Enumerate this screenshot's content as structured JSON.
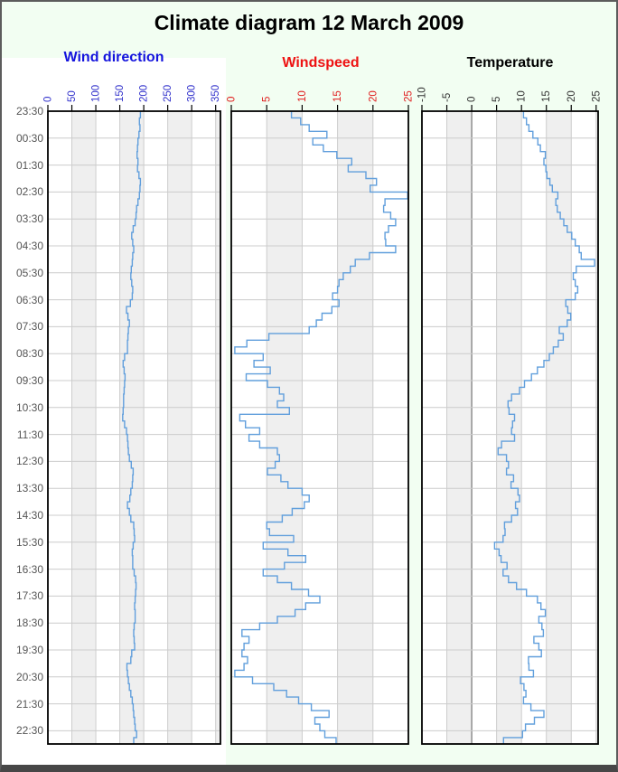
{
  "page": {
    "title": "Climate diagram 12 March 2009"
  },
  "colors": {
    "page_background": "#f2fef2",
    "plot_background": "#ffffff",
    "band": "#efefef",
    "grid": "#cccccc",
    "zero_line": "#878787",
    "box_border": "#000000",
    "frame_border": "#5c5c5c",
    "time_label": "#555555",
    "series_line": "#619fdc"
  },
  "time_axis": {
    "labels": [
      "23:30",
      "00:30",
      "01:30",
      "02:30",
      "03:30",
      "04:30",
      "05:30",
      "06:30",
      "07:30",
      "08:30",
      "09:30",
      "10:30",
      "11:30",
      "12:30",
      "13:30",
      "14:30",
      "15:30",
      "16:30",
      "17:30",
      "18:30",
      "19:30",
      "20:30",
      "21:30",
      "22:30"
    ]
  },
  "chart_data": [
    {
      "type": "line",
      "title": "Wind direction",
      "title_color": "#1414dd",
      "tick_color": "#3434cc",
      "line_color": "#619fdc",
      "ticks": [
        0,
        50,
        100,
        150,
        200,
        250,
        300,
        350
      ],
      "xlim": [
        0,
        360
      ],
      "band_step": 50,
      "zero_line": false,
      "time_start": "23:30",
      "sample_minutes": 15,
      "values": [
        193,
        191,
        192,
        190,
        188,
        187,
        186,
        188,
        187,
        190,
        193,
        192,
        191,
        188,
        185,
        184,
        182,
        178,
        175,
        177,
        179,
        177,
        176,
        174,
        173,
        175,
        177,
        176,
        172,
        164,
        167,
        170,
        168,
        167,
        166,
        166,
        160,
        157,
        159,
        161,
        160,
        159,
        158,
        158,
        157,
        156,
        160,
        164,
        166,
        167,
        168,
        170,
        174,
        178,
        177,
        176,
        173,
        171,
        166,
        170,
        173,
        179,
        180,
        181,
        178,
        176,
        177,
        177,
        180,
        183,
        184,
        183,
        182,
        181,
        182,
        182,
        180,
        179,
        180,
        181,
        175,
        173,
        165,
        166,
        168,
        170,
        173,
        176,
        178,
        179,
        181,
        182,
        185,
        179
      ]
    },
    {
      "type": "line",
      "title": "Windspeed",
      "title_color": "#ee1212",
      "tick_color": "#e02020",
      "line_color": "#619fdc",
      "ticks": [
        0,
        5,
        10,
        15,
        20,
        25
      ],
      "xlim": [
        0,
        25
      ],
      "band_step": 5,
      "zero_line": false,
      "time_start": "23:30",
      "sample_minutes": 15,
      "values": [
        8.5,
        9.8,
        11,
        13.5,
        11.5,
        13,
        14.9,
        17,
        16.5,
        19,
        20.5,
        19.6,
        24.9,
        21.7,
        21.5,
        22.5,
        23.2,
        22.2,
        21.7,
        21.8,
        23.2,
        19.5,
        17.5,
        16.8,
        15.8,
        15.2,
        15,
        14.3,
        15.2,
        14.2,
        12.8,
        12,
        11,
        5.3,
        2.2,
        0.5,
        4.5,
        3.2,
        5.5,
        2.1,
        5.1,
        6.8,
        7.4,
        6.5,
        8.2,
        1.2,
        2,
        4,
        2.5,
        4,
        6.5,
        6.8,
        6.2,
        5.1,
        7,
        8,
        10,
        11,
        10.3,
        8.6,
        7.2,
        5,
        5.4,
        8.8,
        4.5,
        8,
        10.5,
        7.5,
        4.5,
        6.5,
        8.5,
        10.9,
        12.5,
        10.5,
        9,
        6.5,
        4,
        1.5,
        2.5,
        1.8,
        1.5,
        2.3,
        1.8,
        0.5,
        3,
        6,
        7.8,
        9.5,
        11.3,
        13.8,
        11.8,
        12.5,
        13.2,
        14.8
      ]
    },
    {
      "type": "line",
      "title": "Temperature",
      "title_color": "#000000",
      "tick_color": "#333333",
      "line_color": "#619fdc",
      "ticks": [
        -10,
        -5,
        0,
        5,
        10,
        15,
        20,
        25
      ],
      "xlim": [
        -10,
        25.4
      ],
      "band_step": 5,
      "zero_line": true,
      "time_start": "23:30",
      "sample_minutes": 15,
      "values": [
        10.4,
        11,
        11.5,
        12.3,
        13.3,
        13.8,
        14.8,
        14.5,
        14.9,
        15.1,
        15.7,
        16.2,
        17.3,
        16.9,
        17.2,
        17.8,
        18.5,
        19.2,
        20.1,
        20.8,
        21.6,
        22,
        24.7,
        21,
        20.4,
        20.8,
        21.3,
        20.8,
        18.9,
        19.3,
        19.9,
        19.2,
        17.6,
        18.4,
        17.4,
        16.4,
        15.6,
        14.5,
        13.2,
        12,
        10.6,
        9.6,
        8,
        7.3,
        7.5,
        8.6,
        8.2,
        8,
        8.6,
        6,
        5.3,
        7,
        7.4,
        7,
        8.4,
        7.9,
        9.3,
        9.6,
        8.8,
        9.2,
        8,
        6.6,
        6.7,
        6.3,
        4.6,
        5.5,
        5.9,
        7.1,
        6.3,
        7.4,
        9,
        11,
        13.2,
        13.9,
        14.8,
        13.5,
        14.1,
        14.4,
        12.5,
        13.5,
        14,
        11.4,
        11.5,
        12.4,
        9.8,
        10.5,
        10.9,
        10.4,
        11.9,
        14.5,
        12.6,
        10.8,
        10.2,
        6.4
      ]
    }
  ]
}
